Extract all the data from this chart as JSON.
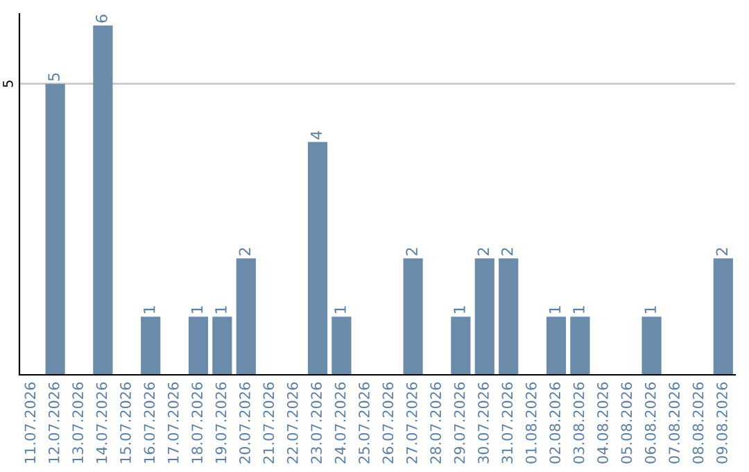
{
  "chart_data": {
    "type": "bar",
    "categories": [
      "11.07.2026",
      "12.07.2026",
      "13.07.2026",
      "14.07.2026",
      "15.07.2026",
      "16.07.2026",
      "17.07.2026",
      "18.07.2026",
      "19.07.2026",
      "20.07.2026",
      "21.07.2026",
      "22.07.2026",
      "23.07.2026",
      "24.07.2026",
      "25.07.2026",
      "26.07.2026",
      "27.07.2026",
      "28.07.2026",
      "29.07.2026",
      "30.07.2026",
      "31.07.2026",
      "01.08.2026",
      "02.08.2026",
      "03.08.2026",
      "04.08.2026",
      "05.08.2026",
      "06.08.2026",
      "07.08.2026",
      "08.08.2026",
      "09.08.2026"
    ],
    "values": [
      0,
      5,
      0,
      6,
      0,
      1,
      0,
      1,
      1,
      2,
      0,
      0,
      4,
      1,
      0,
      0,
      2,
      0,
      1,
      2,
      2,
      0,
      1,
      1,
      0,
      0,
      1,
      0,
      0,
      2
    ],
    "value_labels": [
      null,
      "5",
      null,
      "6",
      null,
      "1",
      null,
      "1",
      "1",
      "2",
      null,
      null,
      "4",
      "1",
      null,
      null,
      "2",
      null,
      "1",
      "2",
      "2",
      null,
      "1",
      "1",
      null,
      null,
      "1",
      null,
      null,
      "2"
    ],
    "color": "#6a8caa",
    "ylim": [
      0,
      6.2
    ],
    "yticks": [
      5
    ],
    "grid": "y"
  }
}
